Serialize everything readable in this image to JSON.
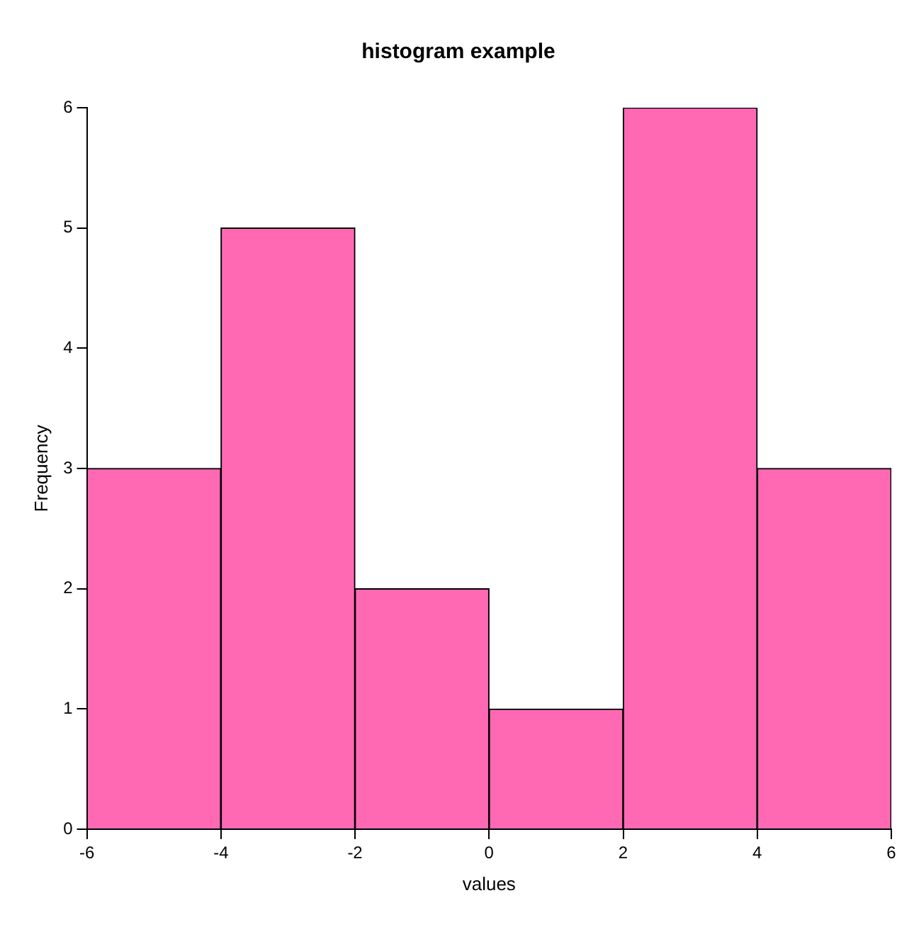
{
  "chart_data": {
    "type": "histogram",
    "title": "histogram example",
    "xlabel": "values",
    "ylabel": "Frequency",
    "bins": [
      -6,
      -4,
      -2,
      0,
      2,
      4,
      6
    ],
    "values": [
      3,
      5,
      2,
      1,
      6,
      3
    ],
    "color": "#ff69b4",
    "xlim": [
      -6,
      6
    ],
    "xticks": [
      -6,
      -4,
      -2,
      0,
      2,
      4,
      6
    ],
    "ylim": [
      0,
      6
    ],
    "yticks": [
      0,
      1,
      2,
      3,
      4,
      5,
      6
    ]
  }
}
